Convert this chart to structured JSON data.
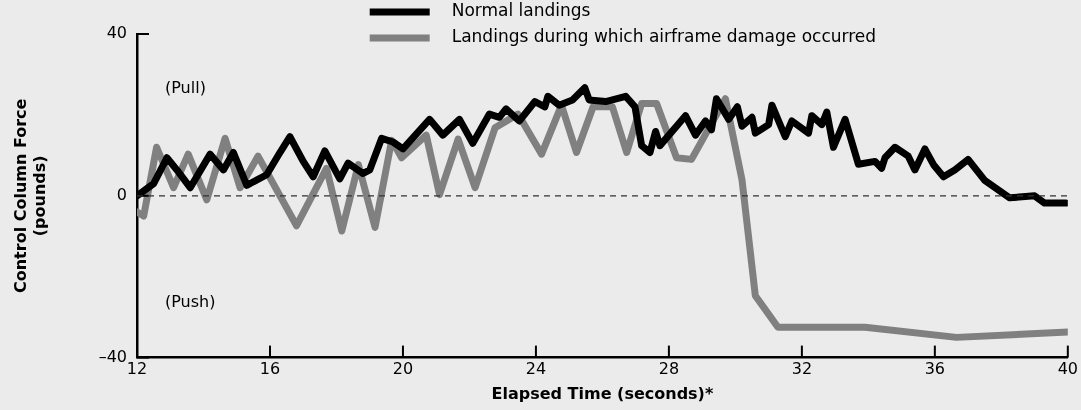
{
  "chart_data": {
    "type": "line",
    "xlabel": "Elapsed Time (seconds)*",
    "ylabel": "Control Column Force\n(pounds)",
    "xlim": [
      12,
      40
    ],
    "xticks": [
      12,
      16,
      20,
      24,
      28,
      32,
      36,
      40
    ],
    "ylim": [
      -40,
      40
    ],
    "yticks": [
      {
        "value": -40,
        "label": "–40"
      },
      0,
      40
    ],
    "grid": false,
    "legend": "top",
    "marker": "none",
    "line_style": "solid",
    "ref_lines": [
      {
        "axis": "y",
        "value": 0,
        "color": "#333333",
        "line_style": "dashed"
      }
    ],
    "annotations": [
      "(Pull)",
      "(Push)"
    ],
    "series": [
      {
        "name": "Normal landings",
        "color": "#000000",
        "x": [
          12,
          12.5,
          12.9,
          13.2,
          13.6,
          14.2,
          14.6,
          14.9,
          15.3,
          15.9,
          16.3,
          16.6,
          17.0,
          17.3,
          17.65,
          18.1,
          18.35,
          18.8,
          19.0,
          19.36,
          19.7,
          20.0,
          20.8,
          21.2,
          21.7,
          22.1,
          22.6,
          22.9,
          23.1,
          23.5,
          23.97,
          24.27,
          24.36,
          24.7,
          25.1,
          25.47,
          25.6,
          26.1,
          26.7,
          26.98,
          27.18,
          27.43,
          27.6,
          27.73,
          28.5,
          28.8,
          29.1,
          29.28,
          29.43,
          29.8,
          30.06,
          30.2,
          30.5,
          30.6,
          31.0,
          31.1,
          31.5,
          31.7,
          32.2,
          32.3,
          32.6,
          32.75,
          32.95,
          33.3,
          33.7,
          34.2,
          34.4,
          34.5,
          34.8,
          35.2,
          35.4,
          35.7,
          35.96,
          36.26,
          36.6,
          37.0,
          37.5,
          38.25,
          39.0,
          39.3,
          39.95
        ],
        "values": [
          0,
          3,
          9.4,
          6.4,
          2,
          10.3,
          6.4,
          10.7,
          2.6,
          5.2,
          10.7,
          14.6,
          8.5,
          4.7,
          11.1,
          4.2,
          8.1,
          5.5,
          6.4,
          14.2,
          13.3,
          11.6,
          18.9,
          15,
          18.9,
          13,
          20.2,
          19.4,
          21.5,
          18.5,
          23.3,
          22,
          24.6,
          22.4,
          23.7,
          26.7,
          23.7,
          23.3,
          24.6,
          22,
          12.4,
          10.7,
          15.9,
          12.4,
          19.8,
          15,
          18.5,
          16.3,
          24,
          18.9,
          22,
          17.2,
          19.4,
          15.5,
          17.6,
          22.4,
          14.6,
          18.5,
          15.5,
          19.8,
          17.6,
          20.7,
          12,
          18.9,
          7.8,
          8.5,
          6.8,
          9.4,
          12,
          9.8,
          6.4,
          11.6,
          7.7,
          4.7,
          6.4,
          9,
          3.8,
          -0.5,
          0,
          -1.8,
          -1.8
        ]
      },
      {
        "name": "Landings during which airframe damage occurred",
        "color": "#808080",
        "x": [
          12,
          12.2,
          12.59,
          13.1,
          13.54,
          14.1,
          14.65,
          15.1,
          15.64,
          16.8,
          17.7,
          18.16,
          18.66,
          19.16,
          19.66,
          19.96,
          20.7,
          21.1,
          21.66,
          22.17,
          22.77,
          23.46,
          24.17,
          24.77,
          25.22,
          25.72,
          26.3,
          26.73,
          27.18,
          27.63,
          28.23,
          28.68,
          29.7,
          30.2,
          30.6,
          31.28,
          33.9,
          36.65,
          40
        ],
        "values": [
          -4,
          -5,
          12,
          2,
          10.3,
          -1,
          14.2,
          2,
          9.8,
          -7.4,
          6.8,
          -8.7,
          7.7,
          -7.8,
          13.7,
          9.4,
          15,
          0.3,
          14,
          2,
          16.8,
          20.2,
          10.3,
          22.4,
          10.7,
          22,
          22,
          10.7,
          22.8,
          22.8,
          9.4,
          9,
          24,
          3.9,
          -24.7,
          -32.5,
          -32.5,
          -35,
          -33.7
        ]
      }
    ]
  }
}
